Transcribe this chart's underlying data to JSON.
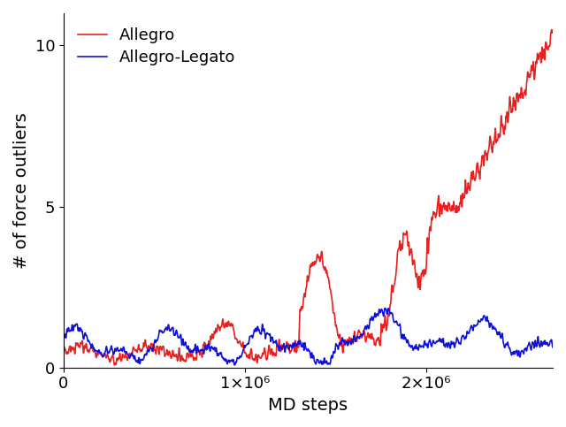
{
  "x_max": 2700000,
  "n_points": 2700,
  "seed": 17,
  "allegro_color": "#e82020",
  "legato_color": "#1010dd",
  "ylabel": "# of force outliers",
  "xlabel": "MD steps",
  "ylim": [
    0,
    11
  ],
  "yticks": [
    0,
    5,
    10
  ],
  "xtick_locs": [
    0,
    1000000,
    2000000
  ],
  "xtick_labels": [
    "0",
    "1×10⁶",
    "2×10⁶"
  ],
  "legend_allegro": "Allegro",
  "legend_legato": "Allegro-Legato",
  "line_width": 1.2,
  "title": ""
}
